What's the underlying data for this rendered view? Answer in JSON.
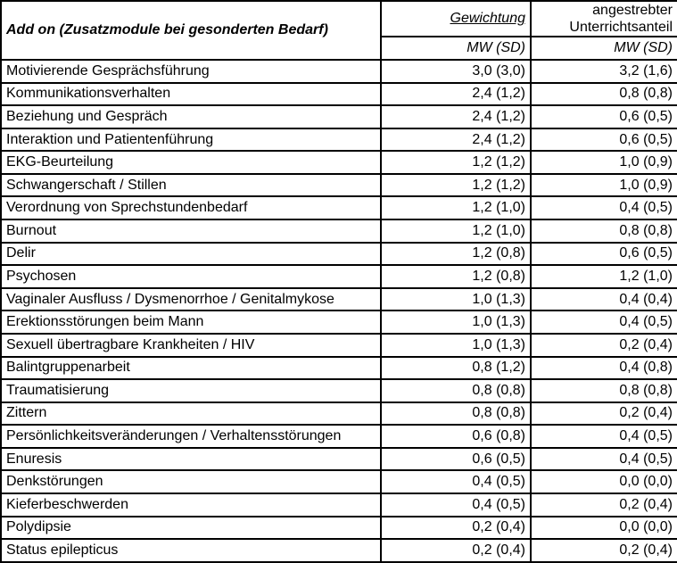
{
  "colors": {
    "border": "#000000",
    "text": "#000000",
    "background": "#ffffff"
  },
  "table": {
    "title": "Add on (Zusatzmodule bei gesonderten Bedarf)",
    "col_groups": {
      "gewichtung": "Gewichtung",
      "unterrichtsanteil": "angestrebter\nUnterrichtsanteil"
    },
    "subheaders": {
      "gewichtung": "MW (SD)",
      "unterrichtsanteil": "MW (SD)"
    },
    "rows": [
      {
        "label": "Motivierende Gesprächsführung",
        "gewichtung": "3,0 (3,0)",
        "unterrichtsanteil": "3,2 (1,6)"
      },
      {
        "label": "Kommunikationsverhalten",
        "gewichtung": "2,4 (1,2)",
        "unterrichtsanteil": "0,8 (0,8)"
      },
      {
        "label": "Beziehung und Gespräch",
        "gewichtung": "2,4 (1,2)",
        "unterrichtsanteil": "0,6 (0,5)"
      },
      {
        "label": "Interaktion und Patientenführung",
        "gewichtung": "2,4 (1,2)",
        "unterrichtsanteil": "0,6 (0,5)"
      },
      {
        "label": "EKG-Beurteilung",
        "gewichtung": "1,2 (1,2)",
        "unterrichtsanteil": "1,0 (0,9)"
      },
      {
        "label": "Schwangerschaft / Stillen",
        "gewichtung": "1,2 (1,2)",
        "unterrichtsanteil": "1,0 (0,9)"
      },
      {
        "label": "Verordnung von Sprechstundenbedarf",
        "gewichtung": "1,2 (1,0)",
        "unterrichtsanteil": "0,4 (0,5)"
      },
      {
        "label": "Burnout",
        "gewichtung": "1,2 (1,0)",
        "unterrichtsanteil": "0,8 (0,8)"
      },
      {
        "label": "Delir",
        "gewichtung": "1,2 (0,8)",
        "unterrichtsanteil": "0,6 (0,5)"
      },
      {
        "label": "Psychosen",
        "gewichtung": "1,2 (0,8)",
        "unterrichtsanteil": "1,2 (1,0)"
      },
      {
        "label": "Vaginaler Ausfluss / Dysmenorrhoe / Genitalmykose",
        "gewichtung": "1,0 (1,3)",
        "unterrichtsanteil": "0,4 (0,4)"
      },
      {
        "label": "Erektionsstörungen beim Mann",
        "gewichtung": "1,0 (1,3)",
        "unterrichtsanteil": "0,4 (0,5)"
      },
      {
        "label": "Sexuell übertragbare Krankheiten / HIV",
        "gewichtung": "1,0 (1,3)",
        "unterrichtsanteil": "0,2 (0,4)"
      },
      {
        "label": "Balintgruppenarbeit",
        "gewichtung": "0,8 (1,2)",
        "unterrichtsanteil": "0,4 (0,8)"
      },
      {
        "label": "Traumatisierung",
        "gewichtung": "0,8 (0,8)",
        "unterrichtsanteil": "0,8 (0,8)"
      },
      {
        "label": "Zittern",
        "gewichtung": "0,8 (0,8)",
        "unterrichtsanteil": "0,2 (0,4)"
      },
      {
        "label": "Persönlichkeitsveränderungen / Verhaltensstörungen",
        "gewichtung": "0,6 (0,8)",
        "unterrichtsanteil": "0,4 (0,5)"
      },
      {
        "label": "Enuresis",
        "gewichtung": "0,6 (0,5)",
        "unterrichtsanteil": "0,4 (0,5)"
      },
      {
        "label": "Denkstörungen",
        "gewichtung": "0,4 (0,5)",
        "unterrichtsanteil": "0,0 (0,0)"
      },
      {
        "label": "Kieferbeschwerden",
        "gewichtung": "0,4 (0,5)",
        "unterrichtsanteil": "0,2 (0,4)"
      },
      {
        "label": "Polydipsie",
        "gewichtung": "0,2 (0,4)",
        "unterrichtsanteil": "0,0 (0,0)"
      },
      {
        "label": "Status epilepticus",
        "gewichtung": "0,2 (0,4)",
        "unterrichtsanteil": "0,2 (0,4)"
      }
    ]
  }
}
